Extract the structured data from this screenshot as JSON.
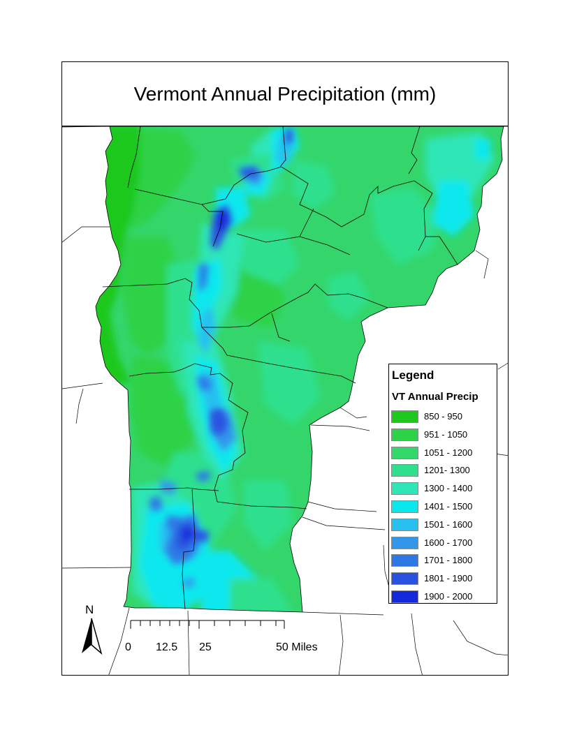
{
  "map": {
    "title": "Vermont Annual Precipitation (mm)"
  },
  "legend": {
    "title": "Legend",
    "layer_name": "VT Annual Precip",
    "classes": [
      {
        "label": "850 - 950",
        "color": "#1ec81e"
      },
      {
        "label": "951 - 1050",
        "color": "#2ed246"
      },
      {
        "label": "1051 - 1200",
        "color": "#33d86a"
      },
      {
        "label": "1201- 1300",
        "color": "#2ee08e"
      },
      {
        "label": "1300 - 1400",
        "color": "#2ee6b6"
      },
      {
        "label": "1401 - 1500",
        "color": "#0ae8ee"
      },
      {
        "label": "1501 - 1600",
        "color": "#28c0ee"
      },
      {
        "label": "1600 - 1700",
        "color": "#3296ea"
      },
      {
        "label": "1701 - 1800",
        "color": "#2e78e6"
      },
      {
        "label": "1801 - 1900",
        "color": "#2a52e0"
      },
      {
        "label": "1900 - 2000",
        "color": "#1428dc"
      }
    ]
  },
  "north_arrow": {
    "label": "N",
    "icon": "north-arrow-icon"
  },
  "scale_bar": {
    "labels": [
      "0",
      "12.5",
      "25",
      "50 Miles"
    ]
  }
}
